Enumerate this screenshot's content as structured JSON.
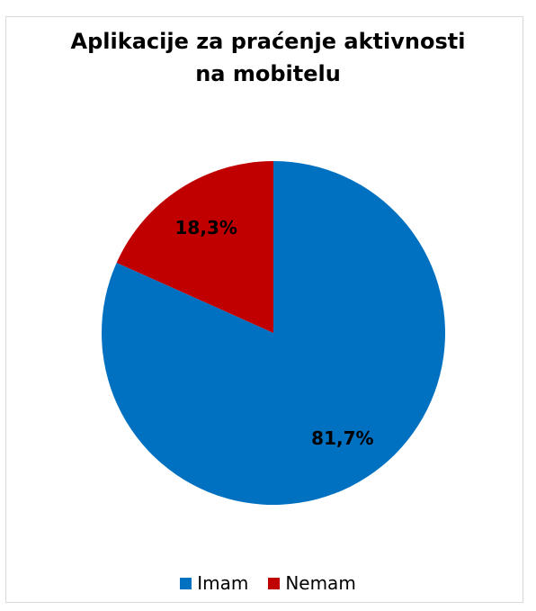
{
  "chart_data": {
    "type": "pie",
    "title_lines": [
      "Aplikacije za praćenje aktivnosti",
      "na mobitelu"
    ],
    "slices": [
      {
        "label": "Imam",
        "value": 81.7,
        "display": "81,7%",
        "color": "#0070C0"
      },
      {
        "label": "Nemam",
        "value": 18.3,
        "display": "18,3%",
        "color": "#C00000"
      }
    ],
    "start_angle_deg": 0,
    "direction": "clockwise",
    "legend_position": "bottom"
  }
}
